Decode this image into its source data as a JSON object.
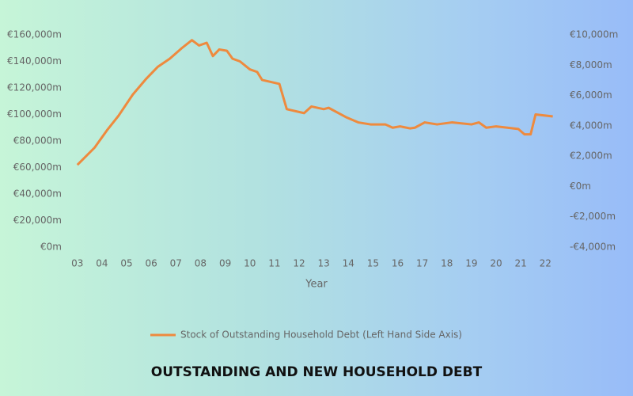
{
  "chart_data": {
    "type": "line",
    "title": "OUTSTANDING AND NEW HOUSEHOLD DEBT",
    "x_label": "Year",
    "x": [
      3.0,
      3.7,
      4.2,
      4.67,
      5.25,
      5.8,
      6.27,
      6.75,
      7.24,
      7.65,
      7.94,
      8.25,
      8.5,
      8.76,
      9.07,
      9.3,
      9.6,
      10.0,
      10.3,
      10.5,
      11.2,
      11.5,
      12.2,
      12.5,
      13.0,
      13.2,
      13.6,
      13.9,
      14.4,
      14.9,
      15.5,
      15.8,
      16.1,
      16.5,
      16.7,
      17.1,
      17.6,
      18.2,
      19.0,
      19.3,
      19.6,
      20.0,
      20.9,
      21.15,
      21.4,
      21.6,
      22.3
    ],
    "series": [
      {
        "name": "Stock of Outstanding Household Debt (Left Hand Side Axis)",
        "color": "#ee8a3e",
        "values": [
          62000,
          75000,
          88000,
          99000,
          115000,
          127000,
          136000,
          142000,
          150000,
          156000,
          152000,
          154000,
          144000,
          149000,
          148000,
          142000,
          140000,
          134000,
          132000,
          126000,
          123000,
          104000,
          101000,
          106000,
          104000,
          105000,
          101000,
          98000,
          94000,
          92500,
          92500,
          90000,
          91000,
          89500,
          90000,
          94000,
          92500,
          94000,
          92500,
          94000,
          90000,
          91000,
          89000,
          85000,
          85000,
          100000,
          98500
        ]
      }
    ],
    "xlim": [
      2.75,
      22.6
    ],
    "xticks": [
      {
        "value": 3,
        "label": "03"
      },
      {
        "value": 4,
        "label": "04"
      },
      {
        "value": 5,
        "label": "05"
      },
      {
        "value": 6,
        "label": "06"
      },
      {
        "value": 7,
        "label": "07"
      },
      {
        "value": 8,
        "label": "08"
      },
      {
        "value": 9,
        "label": "09"
      },
      10,
      11,
      12,
      13,
      14,
      15,
      16,
      17,
      18,
      19,
      20,
      21,
      22
    ],
    "ylim": [
      0,
      160000
    ],
    "yticks": [
      {
        "value": 0,
        "label": "€0m"
      },
      {
        "value": 20000,
        "label": "€20,000m"
      },
      {
        "value": 40000,
        "label": "€40,000m"
      },
      {
        "value": 60000,
        "label": "€60,000m"
      },
      {
        "value": 80000,
        "label": "€80,000m"
      },
      {
        "value": 100000,
        "label": "€100,000m"
      },
      {
        "value": 120000,
        "label": "€120,000m"
      },
      {
        "value": 140000,
        "label": "€140,000m"
      },
      {
        "value": 160000,
        "label": "€160,000m"
      }
    ],
    "y2lim": [
      -4000,
      10000
    ],
    "y2ticks": [
      {
        "value": -4000,
        "label": "-€4,000m"
      },
      {
        "value": -2000,
        "label": "-€2,000m"
      },
      {
        "value": 0,
        "label": "€0m"
      },
      {
        "value": 2000,
        "label": "€2,000m"
      },
      {
        "value": 4000,
        "label": "€4,000m"
      },
      {
        "value": 6000,
        "label": "€6,000m"
      },
      {
        "value": 8000,
        "label": "€8,000m"
      },
      {
        "value": 10000,
        "label": "€10,000m"
      }
    ],
    "grid": false,
    "legend": "bottom"
  }
}
